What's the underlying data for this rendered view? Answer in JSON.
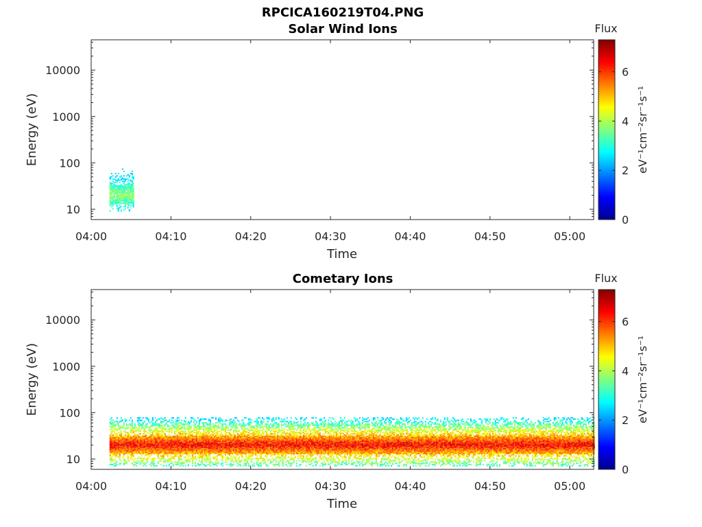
{
  "figure_title": "RPCICA160219T04.PNG",
  "chart_data": [
    {
      "type": "heatmap",
      "title": "Solar Wind Ions",
      "xlabel": "Time",
      "ylabel": "Energy (eV)",
      "y_scale": "log",
      "xlim": [
        "04:00",
        "05:03"
      ],
      "ylim": [
        6,
        45000
      ],
      "xticks": [
        "04:00",
        "04:10",
        "04:20",
        "04:30",
        "04:40",
        "04:50",
        "05:00"
      ],
      "yticks": [
        "10",
        "100",
        "1000",
        "10000"
      ],
      "colorbar": {
        "label": "Flux",
        "units": "eV⁻¹cm⁻²sr⁻¹s⁻¹",
        "range": [
          0,
          7.3
        ],
        "ticks": [
          "0",
          "2",
          "4",
          "6"
        ],
        "colormap": "jet"
      },
      "data_regions": [
        {
          "t_start": "04:02.3",
          "t_end": "04:05.3",
          "energy_min": 9,
          "energy_max": 80,
          "flux_core": 3.8,
          "flux_min": 2.2,
          "flux_max": 4.6
        }
      ],
      "grid": false
    },
    {
      "type": "heatmap",
      "title": "Cometary Ions",
      "xlabel": "Time",
      "ylabel": "Energy (eV)",
      "y_scale": "log",
      "xlim": [
        "04:00",
        "05:03"
      ],
      "ylim": [
        6,
        45000
      ],
      "xticks": [
        "04:00",
        "04:10",
        "04:20",
        "04:30",
        "04:40",
        "04:50",
        "05:00"
      ],
      "yticks": [
        "10",
        "100",
        "1000",
        "10000"
      ],
      "colorbar": {
        "label": "Flux",
        "units": "eV⁻¹cm⁻²sr⁻¹s⁻¹",
        "range": [
          0,
          7.3
        ],
        "ticks": [
          "0",
          "2",
          "4",
          "6"
        ],
        "colormap": "jet"
      },
      "data_regions": [
        {
          "t_start": "04:02.3",
          "t_end": "05:03",
          "energy_min": 7,
          "energy_max": 80,
          "peak_energy": 20,
          "flux_core": 6.4,
          "flux_min": 2.2,
          "flux_max": 6.9
        }
      ],
      "grid": false
    }
  ]
}
